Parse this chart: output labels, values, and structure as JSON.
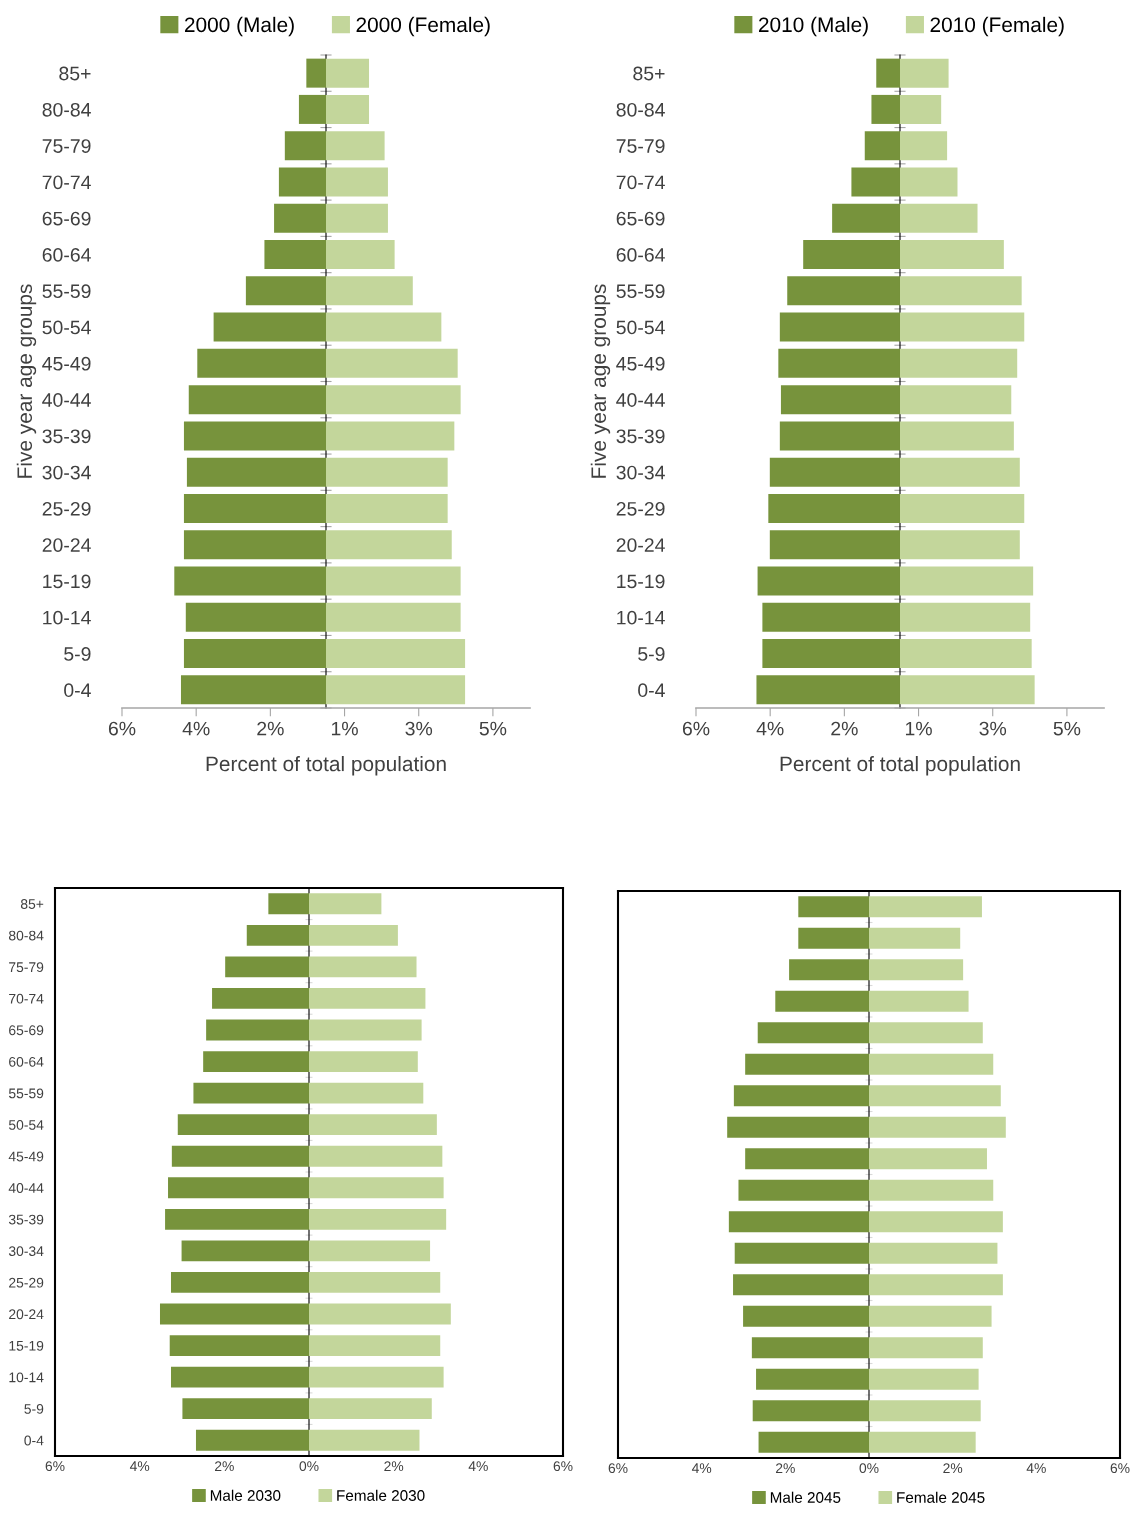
{
  "chart_data": [
    {
      "type": "bar",
      "orientation": "horizontal",
      "xlabel": "Percent of total population",
      "ylabel": "Five year age groups",
      "legend": "top",
      "stacked": true,
      "categories": [
        "85+",
        "80-84",
        "75-79",
        "70-74",
        "65-69",
        "60-64",
        "55-59",
        "50-54",
        "45-49",
        "40-44",
        "35-39",
        "30-34",
        "25-29",
        "20-24",
        "15-19",
        "10-14",
        "5-9",
        "0-4"
      ],
      "series": [
        {
          "name": "2000 (Male)",
          "color": "#77933c",
          "values": [
            -0.53,
            -0.73,
            -1.11,
            -1.27,
            -1.4,
            -1.66,
            -2.16,
            -3.03,
            -3.47,
            -3.7,
            -3.83,
            -3.75,
            -3.83,
            -3.83,
            -4.09,
            -3.78,
            -3.83,
            -3.91
          ]
        },
        {
          "name": "2000 (Female)",
          "color": "#c3d69b",
          "values": [
            1.16,
            1.16,
            1.58,
            1.67,
            1.67,
            1.85,
            2.34,
            3.11,
            3.55,
            3.63,
            3.46,
            3.28,
            3.28,
            3.39,
            3.63,
            3.63,
            3.75,
            3.75
          ]
        }
      ],
      "xlim": [
        -5.5,
        5.5
      ],
      "xticks": [
        {
          "value": -5.5,
          "label": "6%"
        },
        {
          "value": -3.5,
          "label": "4%"
        },
        {
          "value": -1.5,
          "label": "2%"
        },
        {
          "value": 0.5,
          "label": "1%"
        },
        {
          "value": 2.5,
          "label": "3%"
        },
        {
          "value": 4.5,
          "label": "5%"
        }
      ]
    },
    {
      "type": "bar",
      "orientation": "horizontal",
      "xlabel": "Percent of total population",
      "ylabel": "Five year age groups",
      "legend": "top",
      "stacked": true,
      "categories": [
        "85+",
        "80-84",
        "75-79",
        "70-74",
        "65-69",
        "60-64",
        "55-59",
        "50-54",
        "45-49",
        "40-44",
        "35-39",
        "30-34",
        "25-29",
        "20-24",
        "15-19",
        "10-14",
        "5-9",
        "0-4"
      ],
      "series": [
        {
          "name": "2010 (Male)",
          "color": "#77933c",
          "values": [
            -0.64,
            -0.77,
            -0.95,
            -1.31,
            -1.83,
            -2.61,
            -3.04,
            -3.24,
            -3.28,
            -3.21,
            -3.24,
            -3.51,
            -3.55,
            -3.51,
            -3.84,
            -3.71,
            -3.71,
            -3.87
          ]
        },
        {
          "name": "2010 (Female)",
          "color": "#c3d69b",
          "values": [
            1.31,
            1.11,
            1.27,
            1.55,
            2.09,
            2.8,
            3.28,
            3.35,
            3.16,
            3.0,
            3.07,
            3.23,
            3.35,
            3.23,
            3.59,
            3.51,
            3.55,
            3.63
          ]
        }
      ],
      "xlim": [
        -5.5,
        5.5
      ],
      "xticks": [
        {
          "value": -5.5,
          "label": "6%"
        },
        {
          "value": -3.5,
          "label": "4%"
        },
        {
          "value": -1.5,
          "label": "2%"
        },
        {
          "value": 0.5,
          "label": "1%"
        },
        {
          "value": 2.5,
          "label": "3%"
        },
        {
          "value": 4.5,
          "label": "5%"
        }
      ]
    },
    {
      "type": "bar",
      "orientation": "horizontal",
      "legend": "bottom",
      "stacked": true,
      "categories": [
        "85+",
        "80-84",
        "75-79",
        "70-74",
        "65-69",
        "60-64",
        "55-59",
        "50-54",
        "45-49",
        "40-44",
        "35-39",
        "30-34",
        "25-29",
        "20-24",
        "15-19",
        "10-14",
        "5-9",
        "0-4"
      ],
      "series": [
        {
          "name": "Male 2030",
          "color": "#77933c",
          "values": [
            -0.96,
            -1.47,
            -1.98,
            -2.29,
            -2.43,
            -2.5,
            -2.73,
            -3.1,
            -3.24,
            -3.33,
            -3.4,
            -3.01,
            -3.26,
            -3.52,
            -3.29,
            -3.26,
            -2.99,
            -2.67
          ]
        },
        {
          "name": "Female 2030",
          "color": "#c3d69b",
          "values": [
            1.71,
            2.1,
            2.54,
            2.75,
            2.66,
            2.57,
            2.7,
            3.02,
            3.15,
            3.18,
            3.24,
            2.86,
            3.1,
            3.35,
            3.1,
            3.18,
            2.9,
            2.61
          ]
        }
      ],
      "xlim": [
        -6,
        6
      ],
      "xticks": [
        {
          "value": -6,
          "label": "6%"
        },
        {
          "value": -4,
          "label": "4%"
        },
        {
          "value": -2,
          "label": "2%"
        },
        {
          "value": 0,
          "label": "0%"
        },
        {
          "value": 2,
          "label": "2%"
        },
        {
          "value": 4,
          "label": "4%"
        },
        {
          "value": 6,
          "label": "6%"
        }
      ]
    },
    {
      "type": "bar",
      "orientation": "horizontal",
      "legend": "bottom",
      "tick_labels": "x",
      "stacked": true,
      "categories": [
        null,
        null,
        null,
        null,
        null,
        null,
        null,
        null,
        null,
        null,
        null,
        null,
        null,
        null,
        null,
        null,
        null,
        null
      ],
      "series": [
        {
          "name": "Male 2045",
          "color": "#77933c",
          "values": [
            -1.69,
            -1.69,
            -1.91,
            -2.24,
            -2.66,
            -2.96,
            -3.23,
            -3.39,
            -2.96,
            -3.12,
            -3.35,
            -3.21,
            -3.25,
            -3.01,
            -2.8,
            -2.7,
            -2.78,
            -2.64
          ]
        },
        {
          "name": "Female 2045",
          "color": "#c3d69b",
          "values": [
            2.7,
            2.18,
            2.25,
            2.38,
            2.72,
            2.97,
            3.15,
            3.27,
            2.82,
            2.97,
            3.2,
            3.07,
            3.2,
            2.93,
            2.72,
            2.62,
            2.67,
            2.55
          ]
        }
      ],
      "xlim": [
        -6,
        6
      ],
      "xticks": [
        {
          "value": -6,
          "label": "6%"
        },
        {
          "value": -4,
          "label": "4%"
        },
        {
          "value": -2,
          "label": "2%"
        },
        {
          "value": 0,
          "label": "0%"
        },
        {
          "value": 2,
          "label": "2%"
        },
        {
          "value": 4,
          "label": "4%"
        },
        {
          "value": 6,
          "label": "6%"
        }
      ]
    }
  ]
}
